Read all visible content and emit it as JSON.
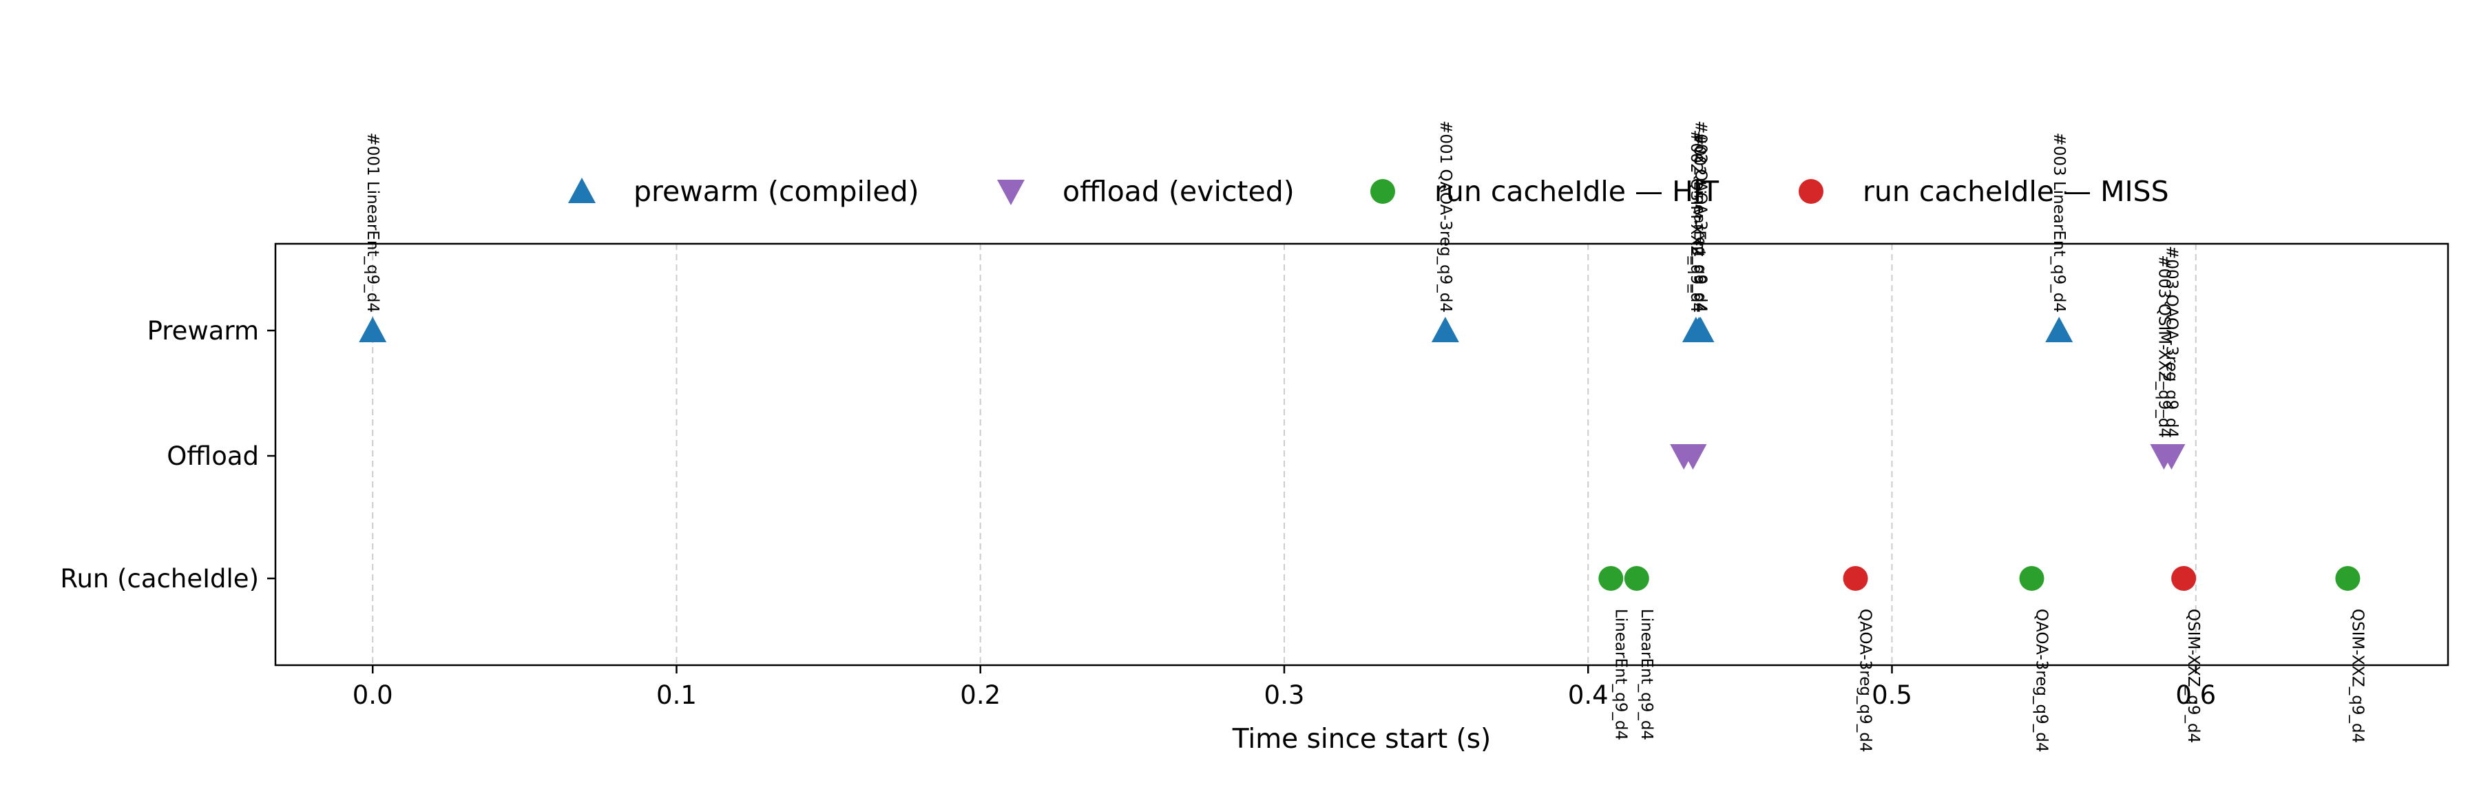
{
  "chart_data": {
    "type": "scatter",
    "xlabel": "Time since start (s)",
    "xlim": [
      -0.032,
      0.683
    ],
    "xticks": [
      "0.0",
      "0.1",
      "0.2",
      "0.3",
      "0.4",
      "0.5",
      "0.6"
    ],
    "rows": [
      "Prewarm",
      "Offload",
      "Run (cacheIdle)"
    ],
    "grid": "x, dashed",
    "legend_position": "top, above plot",
    "legend": [
      {
        "label": "prewarm (compiled)",
        "marker": "triangle-up",
        "color": "#1f77b4"
      },
      {
        "label": "offload (evicted)",
        "marker": "triangle-down",
        "color": "#9467bd"
      },
      {
        "label": "run cacheIdle — HIT",
        "marker": "circle",
        "color": "#2ca02c"
      },
      {
        "label": "run cacheIdle — MISS",
        "marker": "circle",
        "color": "#d62728"
      }
    ],
    "series": [
      {
        "row": "Prewarm",
        "marker": "triangle-up",
        "color": "#1f77b4",
        "label_side": "above",
        "points": [
          {
            "x": 0.0,
            "label": "#001 LinearEnt_q9_d4"
          },
          {
            "x": 0.353,
            "label": "#001 QAOA-3reg_q9_d4"
          },
          {
            "x": 0.4355,
            "label": "#002 QSIM-XXZ_q9_d4"
          },
          {
            "x": 0.437,
            "label": "#002 QAOA-3reg_q9_d4"
          },
          {
            "x": 0.4365,
            "label": "#002 LinearEnt_q9_d4"
          },
          {
            "x": 0.555,
            "label": "#003 LinearEnt_q9_d4"
          }
        ]
      },
      {
        "row": "Offload",
        "marker": "triangle-down",
        "color": "#9467bd",
        "label_side": "above",
        "points": [
          {
            "x": 0.4315,
            "label": ""
          },
          {
            "x": 0.4345,
            "label": ""
          },
          {
            "x": 0.5895,
            "label": "#003 QSIM-XXZ_q9_d4"
          },
          {
            "x": 0.592,
            "label": "#003 QAOA-3reg_q9_d4"
          }
        ]
      },
      {
        "row": "Run (cacheIdle)",
        "marker": "circle",
        "color": "#2ca02c",
        "status": "HIT",
        "label_side": "below",
        "points": [
          {
            "x": 0.4075,
            "label": "LinearEnt_q9_d4"
          },
          {
            "x": 0.416,
            "label": "LinearEnt_q9_d4"
          },
          {
            "x": 0.546,
            "label": "QAOA-3reg_q9_d4"
          },
          {
            "x": 0.65,
            "label": "QSIM-XXZ_q9_d4"
          }
        ]
      },
      {
        "row": "Run (cacheIdle)",
        "marker": "circle",
        "color": "#d62728",
        "status": "MISS",
        "label_side": "below",
        "points": [
          {
            "x": 0.488,
            "label": "QAOA-3reg_q9_d4"
          },
          {
            "x": 0.596,
            "label": "QSIM-XXZ_q9_d4"
          }
        ]
      }
    ]
  }
}
